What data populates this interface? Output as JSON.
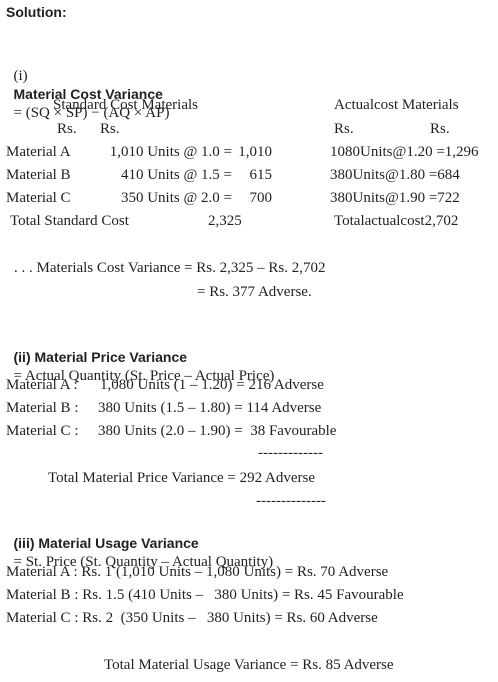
{
  "solution": "Solution:",
  "cost": {
    "number": "(i)",
    "heading": "Material Cost Variance",
    "formula": "= (SQ × SP) − (AQ × AP)",
    "standard_header": "Standard Cost Materials",
    "actual_header": "Actualcost Materials",
    "rs": [
      "Rs.",
      "Rs.",
      "Rs.",
      "Rs."
    ],
    "rows": [
      [
        "Material A",
        "1,010 Units @ 1.0 =",
        "1,010",
        "1080Units@1.20 =1,296"
      ],
      [
        "Material B",
        "410 Units @ 1.5 =",
        "615",
        "380Units@1.80 =684"
      ],
      [
        "Material C",
        "350 Units @ 2.0 =",
        "700",
        "380Units@1.90 =722"
      ]
    ],
    "total_label": "Total Standard Cost",
    "total_standard": "2,325",
    "total_actual": "Totalactualcost2,702",
    "variance_line1": ". . . Materials Cost Variance = Rs. 2,325 – Rs. 2,702",
    "variance_line2": "= Rs. 377 Adverse."
  },
  "price": {
    "heading": "(ii) Material Price Variance",
    "formula": "= Actual Quantity (St. Price – Actual Price)",
    "rows": [
      [
        "Material A :",
        "1,080 Units (1 – 1.20) = 216 Adverse"
      ],
      [
        "Material B :",
        "380 Units (1.5 – 1.80) = 114 Adverse"
      ],
      [
        "Material C :",
        "380 Units (2.0 – 1.90) =  38 Favourable"
      ]
    ],
    "rule_top": "-------------",
    "total": "Total Material Price Variance = 292 Adverse",
    "rule_bottom": "--------------"
  },
  "usage": {
    "heading": "(iii) Material Usage Variance",
    "formula": "= St. Price (St. Quantity – Actual Quantity)",
    "rows": [
      "Material A : Rs. 1 (1,010 Units – 1,080 Units) = Rs. 70 Adverse",
      "Material B : Rs. 1.5 (410 Units –   380 Units) = Rs. 45 Favourable",
      "Material C : Rs. 2  (350 Units –   380 Units) = Rs. 60 Adverse"
    ],
    "total": "Total Material Usage Variance = Rs. 85 Adverse"
  }
}
